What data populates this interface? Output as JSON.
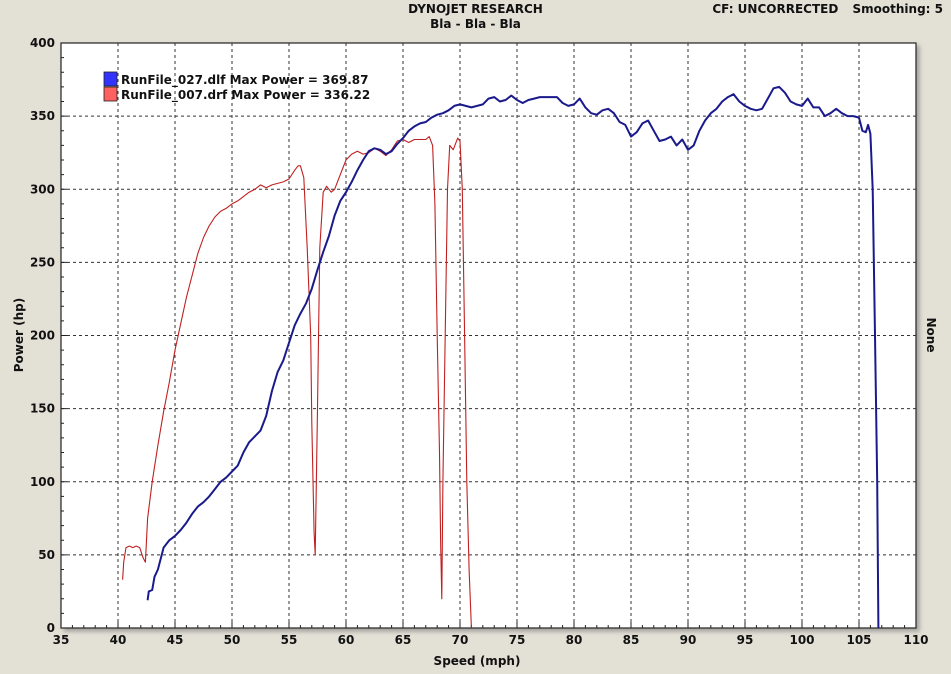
{
  "header": {
    "title": "DYNOJET RESEARCH",
    "subtitle": "Bla - Bla - Bla",
    "cf_label": "CF: UNCORRECTED",
    "smoothing_label": "Smoothing: 5"
  },
  "chart_data": {
    "type": "line",
    "title": "DYNOJET RESEARCH",
    "subtitle": "Bla - Bla - Bla",
    "xlabel": "Speed (mph)",
    "ylabel": "Power (hp)",
    "right_label": "None",
    "xlim": [
      35,
      110
    ],
    "ylim": [
      0,
      400
    ],
    "xticks": [
      35,
      40,
      45,
      50,
      55,
      60,
      65,
      70,
      75,
      80,
      85,
      90,
      95,
      100,
      105,
      110
    ],
    "yticks": [
      0,
      50,
      100,
      150,
      200,
      250,
      300,
      350,
      400
    ],
    "grid": true,
    "legend_position": "top-left",
    "series": [
      {
        "name": "RunFile_027.dlf Max Power = 369.87",
        "color": "#1a1a8c",
        "swatch": "#3333ff",
        "points": [
          [
            42.6,
            19
          ],
          [
            42.7,
            25
          ],
          [
            43.0,
            26
          ],
          [
            43.2,
            35
          ],
          [
            43.5,
            40
          ],
          [
            44.0,
            55
          ],
          [
            44.5,
            60
          ],
          [
            45.0,
            63
          ],
          [
            45.5,
            67
          ],
          [
            46.0,
            72
          ],
          [
            46.5,
            78
          ],
          [
            47.0,
            83
          ],
          [
            47.5,
            86
          ],
          [
            48.0,
            90
          ],
          [
            48.5,
            95
          ],
          [
            49.0,
            100
          ],
          [
            49.5,
            103
          ],
          [
            50.0,
            107
          ],
          [
            50.5,
            111
          ],
          [
            51.0,
            120
          ],
          [
            51.5,
            127
          ],
          [
            52.0,
            131
          ],
          [
            52.5,
            135
          ],
          [
            53.0,
            145
          ],
          [
            53.5,
            162
          ],
          [
            54.0,
            175
          ],
          [
            54.5,
            183
          ],
          [
            55.0,
            195
          ],
          [
            55.5,
            207
          ],
          [
            56.0,
            215
          ],
          [
            56.5,
            222
          ],
          [
            57.0,
            232
          ],
          [
            57.5,
            245
          ],
          [
            58.0,
            257
          ],
          [
            58.5,
            268
          ],
          [
            59.0,
            282
          ],
          [
            59.5,
            292
          ],
          [
            60.0,
            298
          ],
          [
            60.5,
            305
          ],
          [
            61.0,
            313
          ],
          [
            61.5,
            320
          ],
          [
            62.0,
            326
          ],
          [
            62.5,
            328
          ],
          [
            63.0,
            327
          ],
          [
            63.5,
            324
          ],
          [
            64.0,
            326
          ],
          [
            64.5,
            331
          ],
          [
            65.0,
            335
          ],
          [
            65.5,
            340
          ],
          [
            66.0,
            343
          ],
          [
            66.5,
            345
          ],
          [
            67.0,
            346
          ],
          [
            67.5,
            349
          ],
          [
            68.0,
            351
          ],
          [
            68.5,
            352
          ],
          [
            69.0,
            354
          ],
          [
            69.5,
            357
          ],
          [
            70.0,
            358
          ],
          [
            70.5,
            357
          ],
          [
            71.0,
            356
          ],
          [
            71.5,
            357
          ],
          [
            72.0,
            358
          ],
          [
            72.5,
            362
          ],
          [
            73.0,
            363
          ],
          [
            73.5,
            360
          ],
          [
            74.0,
            361
          ],
          [
            74.5,
            364
          ],
          [
            75.0,
            361
          ],
          [
            75.5,
            359
          ],
          [
            76.0,
            361
          ],
          [
            76.5,
            362
          ],
          [
            77.0,
            363
          ],
          [
            77.5,
            363
          ],
          [
            78.0,
            363
          ],
          [
            78.5,
            363
          ],
          [
            79.0,
            359
          ],
          [
            79.5,
            357
          ],
          [
            80.0,
            358
          ],
          [
            80.5,
            362
          ],
          [
            81.0,
            356
          ],
          [
            81.5,
            352
          ],
          [
            82.0,
            351
          ],
          [
            82.5,
            354
          ],
          [
            83.0,
            355
          ],
          [
            83.5,
            352
          ],
          [
            84.0,
            346
          ],
          [
            84.5,
            344
          ],
          [
            85.0,
            336
          ],
          [
            85.5,
            339
          ],
          [
            86.0,
            345
          ],
          [
            86.5,
            347
          ],
          [
            87.0,
            340
          ],
          [
            87.5,
            333
          ],
          [
            88.0,
            334
          ],
          [
            88.5,
            336
          ],
          [
            89.0,
            330
          ],
          [
            89.5,
            334
          ],
          [
            90.0,
            327
          ],
          [
            90.5,
            330
          ],
          [
            91.0,
            340
          ],
          [
            91.5,
            347
          ],
          [
            92.0,
            352
          ],
          [
            92.5,
            355
          ],
          [
            93.0,
            360
          ],
          [
            93.5,
            363
          ],
          [
            94.0,
            365
          ],
          [
            94.5,
            360
          ],
          [
            95.0,
            357
          ],
          [
            95.5,
            355
          ],
          [
            96.0,
            354
          ],
          [
            96.5,
            355
          ],
          [
            97.0,
            362
          ],
          [
            97.5,
            369
          ],
          [
            98.0,
            370
          ],
          [
            98.5,
            366
          ],
          [
            99.0,
            360
          ],
          [
            99.5,
            358
          ],
          [
            100.0,
            357
          ],
          [
            100.5,
            362
          ],
          [
            101.0,
            356
          ],
          [
            101.5,
            356
          ],
          [
            102.0,
            350
          ],
          [
            102.5,
            352
          ],
          [
            103.0,
            355
          ],
          [
            103.5,
            352
          ],
          [
            104.0,
            350
          ],
          [
            104.5,
            350
          ],
          [
            105.0,
            349
          ],
          [
            105.3,
            340
          ],
          [
            105.6,
            339
          ],
          [
            105.8,
            344
          ],
          [
            106.0,
            338
          ],
          [
            106.2,
            300
          ],
          [
            106.4,
            200
          ],
          [
            106.6,
            100
          ],
          [
            106.7,
            0
          ]
        ]
      },
      {
        "name": "RunFile_007.drf Max Power = 336.22",
        "color": "#c02020",
        "swatch": "#ff6060",
        "points": [
          [
            40.4,
            33
          ],
          [
            40.5,
            45
          ],
          [
            40.7,
            55
          ],
          [
            41.0,
            56
          ],
          [
            41.3,
            55
          ],
          [
            41.6,
            56
          ],
          [
            41.9,
            55
          ],
          [
            42.2,
            48
          ],
          [
            42.4,
            45
          ],
          [
            42.6,
            75
          ],
          [
            43.0,
            100
          ],
          [
            43.5,
            125
          ],
          [
            44.0,
            148
          ],
          [
            44.5,
            168
          ],
          [
            45.0,
            190
          ],
          [
            45.5,
            208
          ],
          [
            46.0,
            226
          ],
          [
            46.5,
            241
          ],
          [
            47.0,
            256
          ],
          [
            47.5,
            267
          ],
          [
            48.0,
            275
          ],
          [
            48.5,
            281
          ],
          [
            49.0,
            285
          ],
          [
            49.5,
            287
          ],
          [
            50.0,
            290
          ],
          [
            50.5,
            292
          ],
          [
            51.0,
            295
          ],
          [
            51.5,
            298
          ],
          [
            52.0,
            300
          ],
          [
            52.5,
            303
          ],
          [
            53.0,
            301
          ],
          [
            53.5,
            303
          ],
          [
            54.0,
            304
          ],
          [
            54.5,
            305
          ],
          [
            55.0,
            307
          ],
          [
            55.5,
            313
          ],
          [
            55.8,
            316
          ],
          [
            56.0,
            316
          ],
          [
            56.3,
            308
          ],
          [
            56.6,
            260
          ],
          [
            56.9,
            200
          ],
          [
            57.0,
            140
          ],
          [
            57.2,
            65
          ],
          [
            57.3,
            50
          ],
          [
            57.5,
            150
          ],
          [
            57.7,
            260
          ],
          [
            58.0,
            298
          ],
          [
            58.3,
            302
          ],
          [
            58.7,
            298
          ],
          [
            59.0,
            300
          ],
          [
            59.5,
            310
          ],
          [
            60.0,
            320
          ],
          [
            60.5,
            324
          ],
          [
            61.0,
            326
          ],
          [
            61.5,
            324
          ],
          [
            62.0,
            325
          ],
          [
            62.5,
            328
          ],
          [
            63.0,
            326
          ],
          [
            63.5,
            323
          ],
          [
            64.0,
            327
          ],
          [
            64.5,
            333
          ],
          [
            65.0,
            334
          ],
          [
            65.5,
            332
          ],
          [
            66.0,
            334
          ],
          [
            66.5,
            334
          ],
          [
            67.0,
            334
          ],
          [
            67.3,
            336
          ],
          [
            67.6,
            330
          ],
          [
            67.8,
            290
          ],
          [
            68.0,
            200
          ],
          [
            68.2,
            120
          ],
          [
            68.3,
            60
          ],
          [
            68.4,
            20
          ],
          [
            68.5,
            100
          ],
          [
            68.7,
            200
          ],
          [
            68.9,
            300
          ],
          [
            69.1,
            330
          ],
          [
            69.4,
            327
          ],
          [
            69.8,
            335
          ],
          [
            70.0,
            333
          ],
          [
            70.2,
            300
          ],
          [
            70.4,
            200
          ],
          [
            70.6,
            100
          ],
          [
            70.8,
            40
          ],
          [
            71.0,
            0
          ]
        ]
      }
    ]
  }
}
